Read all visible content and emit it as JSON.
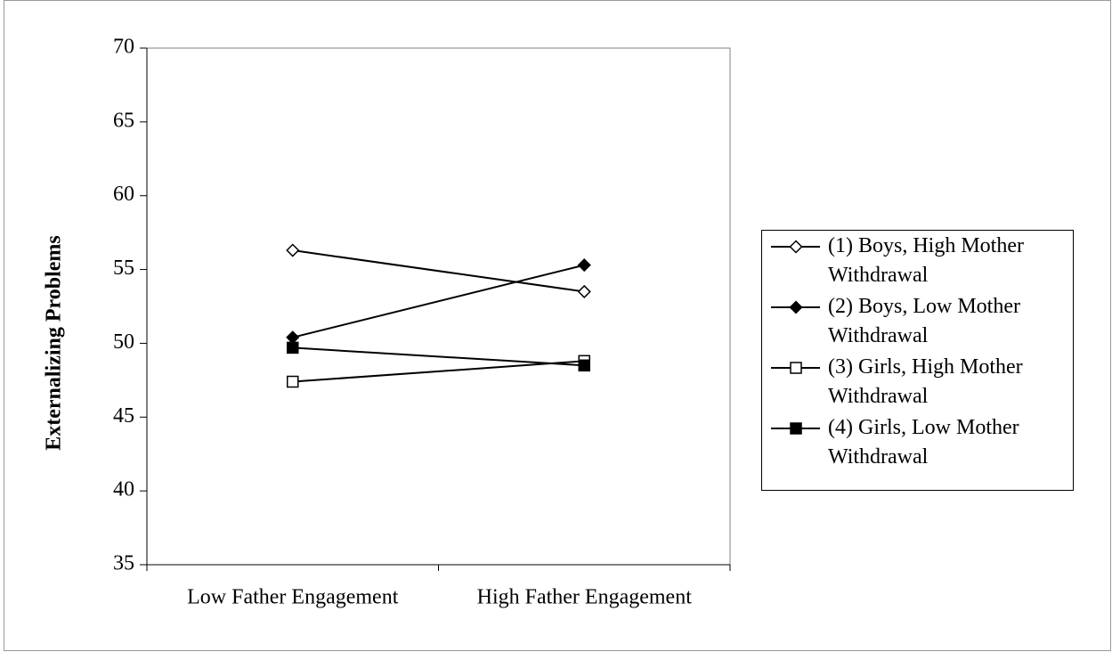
{
  "chart_data": {
    "type": "line",
    "ylabel": "Externalizing Problems",
    "categories": [
      "Low Father Engagement",
      "High Father Engagement"
    ],
    "ylim": [
      35,
      70
    ],
    "yticks": [
      35,
      40,
      45,
      50,
      55,
      60,
      65,
      70
    ],
    "legend": "right",
    "series": [
      {
        "name": "(1) Boys, High Mother Withdrawal",
        "color": "#000000",
        "marker": "diamond",
        "marker_fill": "#ffffff",
        "values": [
          56.3,
          53.5
        ]
      },
      {
        "name": "(2) Boys, Low Mother Withdrawal",
        "color": "#000000",
        "marker": "diamond",
        "marker_fill": "#000000",
        "values": [
          50.4,
          55.3
        ]
      },
      {
        "name": "(3) Girls, High Mother Withdrawal",
        "color": "#000000",
        "marker": "square",
        "marker_fill": "#ffffff",
        "values": [
          47.4,
          48.8
        ]
      },
      {
        "name": "(4) Girls, Low Mother Withdrawal",
        "color": "#000000",
        "marker": "square",
        "marker_fill": "#000000",
        "values": [
          49.7,
          48.5
        ]
      }
    ]
  }
}
